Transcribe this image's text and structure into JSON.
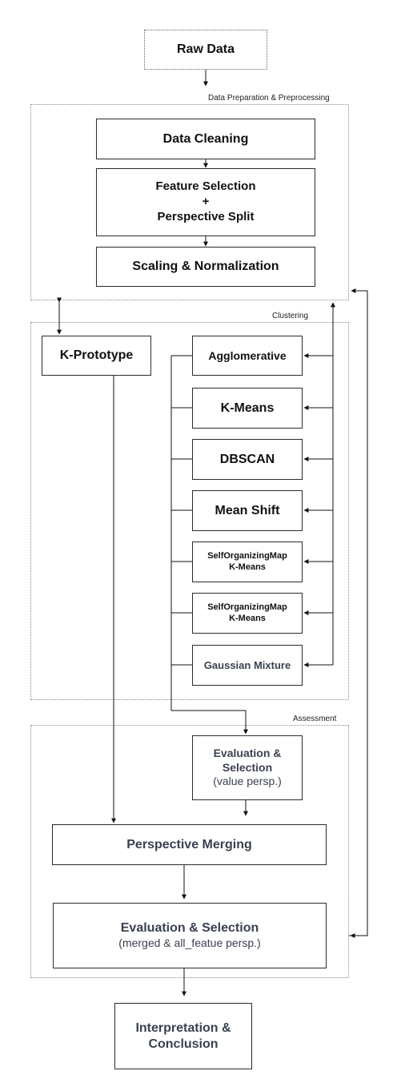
{
  "nodes": {
    "raw_data": "Raw Data",
    "data_cleaning": "Data Cleaning",
    "feature_selection": [
      "Feature Selection",
      "+",
      "Perspective Split"
    ],
    "scaling": "Scaling & Normalization",
    "k_prototype": "K-Prototype",
    "agglomerative": "Agglomerative",
    "k_means": "K-Means",
    "dbscan": "DBSCAN",
    "mean_shift": "Mean Shift",
    "som_kmeans_1": [
      "SelfOrganizingMap",
      "K-Means"
    ],
    "som_kmeans_2": [
      "SelfOrganizingMap",
      "K-Means"
    ],
    "gaussian_mixture": "Gaussian Mixture",
    "eval_value": [
      "Evaluation &",
      "Selection",
      "(value persp.)"
    ],
    "perspective_merging": "Perspective Merging",
    "eval_merged": [
      "Evaluation & Selection",
      "(merged & all_featue persp.)"
    ],
    "interpretation": [
      "Interpretation &",
      "Conclusion"
    ]
  },
  "groups": {
    "preprocessing": "Data Preparation & Preprocessing",
    "clustering": "Clustering",
    "assessment": "Assessment"
  },
  "colors": {
    "border": "#2b2b2b",
    "group_border": "#8a8a8a",
    "text": "#111111",
    "muted_text": "#3a4150"
  }
}
